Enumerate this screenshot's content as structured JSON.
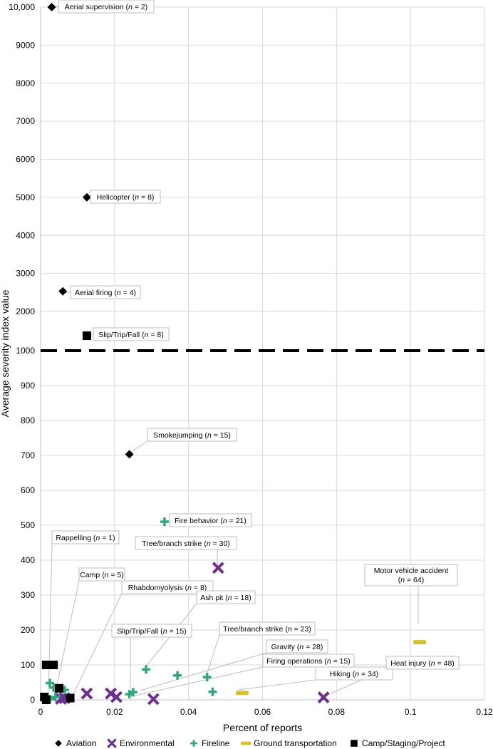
{
  "chart_data": {
    "type": "scatter",
    "xlabel": "Percent of reports",
    "ylabel": "Average severity index value",
    "xlim": [
      0,
      0.12
    ],
    "x_ticks": [
      "0",
      "0.02",
      "0.04",
      "0.06",
      "0.08",
      "0.1",
      "0.12"
    ],
    "y_ticks_lower": [
      "0",
      "100",
      "200",
      "300",
      "400",
      "500",
      "600",
      "700",
      "800",
      "900",
      "1000"
    ],
    "y_ticks_upper": [
      "2000",
      "3000",
      "4000",
      "5000",
      "6000",
      "7000",
      "8000",
      "9000",
      "10,000"
    ],
    "y_axis_break": "linear scale 0–1000 below the dashed line, 1000–10,000 above it",
    "grid": true,
    "legend_position": "bottom",
    "colors": {
      "Aviation": "#000000",
      "Environmental": "#6a2f8f",
      "Fireline": "#2fa882",
      "Ground transportation": "#d6c22a",
      "Camp/Staging/Project": "#000000",
      "dashed_line": "#000000"
    },
    "series": [
      {
        "name": "Aviation",
        "marker": "diamond",
        "points": [
          {
            "x": 0.003,
            "y": 10000
          },
          {
            "x": 0.0125,
            "y": 5000
          },
          {
            "x": 0.006,
            "y": 2530
          },
          {
            "x": 0.024,
            "y": 703
          }
        ]
      },
      {
        "name": "Environmental",
        "marker": "x",
        "points": [
          {
            "x": 0.048,
            "y": 378
          },
          {
            "x": 0.0765,
            "y": 7
          },
          {
            "x": 0.0125,
            "y": 18
          },
          {
            "x": 0.019,
            "y": 18
          },
          {
            "x": 0.0205,
            "y": 8
          },
          {
            "x": 0.0305,
            "y": 2
          },
          {
            "x": 0.0065,
            "y": 5
          },
          {
            "x": 0.0055,
            "y": 3
          }
        ]
      },
      {
        "name": "Fireline",
        "marker": "plus",
        "points": [
          {
            "x": 0.0335,
            "y": 510
          },
          {
            "x": 0.0285,
            "y": 87
          },
          {
            "x": 0.037,
            "y": 70
          },
          {
            "x": 0.045,
            "y": 65
          },
          {
            "x": 0.0465,
            "y": 23
          },
          {
            "x": 0.024,
            "y": 16
          },
          {
            "x": 0.025,
            "y": 22
          },
          {
            "x": 0.0025,
            "y": 48
          },
          {
            "x": 0.0035,
            "y": 35
          },
          {
            "x": 0.0065,
            "y": 28
          },
          {
            "x": 0.004,
            "y": 8
          },
          {
            "x": 0.0025,
            "y": 2
          }
        ]
      },
      {
        "name": "Ground transportation",
        "marker": "dash",
        "points": [
          {
            "x": 0.1025,
            "y": 165
          },
          {
            "x": 0.0545,
            "y": 20
          }
        ]
      },
      {
        "name": "Camp/Staging/Project",
        "marker": "square",
        "points": [
          {
            "x": 0.0125,
            "y": 1380
          },
          {
            "x": 0.0015,
            "y": 100
          },
          {
            "x": 0.0035,
            "y": 100
          },
          {
            "x": 0.005,
            "y": 33
          },
          {
            "x": 0.001,
            "y": 8
          },
          {
            "x": 0.0015,
            "y": 0
          },
          {
            "x": 0.008,
            "y": 5
          }
        ]
      }
    ],
    "annotations": [
      {
        "label": "Aerial supervision",
        "n": "2"
      },
      {
        "label": "Helicopter",
        "n": "8"
      },
      {
        "label": "Aerial firing",
        "n": "4"
      },
      {
        "label": "Slip/Trip/Fall",
        "n": "8"
      },
      {
        "label": "Smokejumping",
        "n": "15"
      },
      {
        "label": "Fire behavior",
        "n": "21"
      },
      {
        "label": "Tree/branch strike",
        "n": "30"
      },
      {
        "label": "Rappelling",
        "n": "1"
      },
      {
        "label": "Camp",
        "n": "5"
      },
      {
        "label": "Rhabdomyolysis",
        "n": "8"
      },
      {
        "label": "Motor vehicle accident",
        "n": "64"
      },
      {
        "label": "Ash pit",
        "n": "18"
      },
      {
        "label": "Slip/Trip/Fall",
        "n": "15"
      },
      {
        "label": "Tree/branch strike",
        "n": "23"
      },
      {
        "label": "Gravity",
        "n": "28"
      },
      {
        "label": "Firing operations",
        "n": "15"
      },
      {
        "label": "Hiking",
        "n": "34"
      },
      {
        "label": "Heat injury",
        "n": "48"
      }
    ]
  }
}
